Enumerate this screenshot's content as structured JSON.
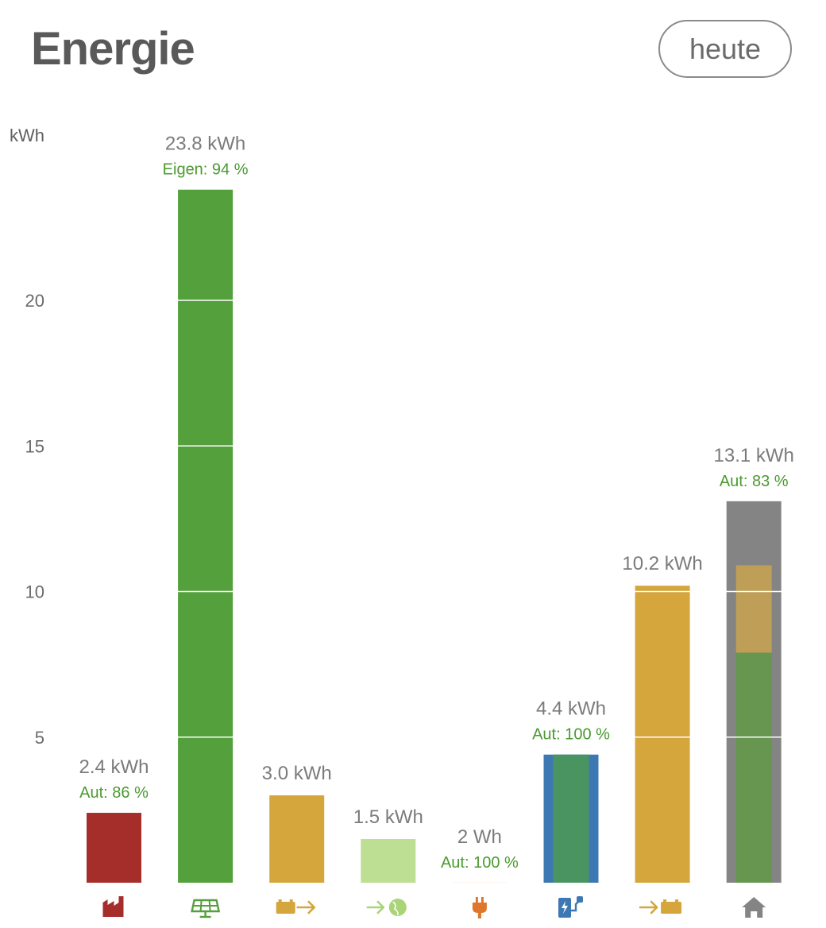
{
  "header": {
    "title": "Energie",
    "period_button": "heute"
  },
  "colors": {
    "grid_import": "#a52d2a",
    "pv": "#54a03c",
    "battery": "#d4a63c",
    "grid_export": "#bddf93",
    "plug": "#e0762b",
    "wallbox": "#3e78b3",
    "wallbox_inner": "#4a9462",
    "house": "#848484",
    "house_pv": "#66964f",
    "house_battery": "#bf9f57"
  },
  "chart_data": {
    "type": "bar",
    "ylabel": "kWh",
    "yticks": [
      5,
      10,
      15,
      20
    ],
    "ylim": [
      0,
      24.5
    ],
    "grid": true,
    "bars": [
      {
        "icon": "factory-icon",
        "value": 2.4,
        "label": "2.4 kWh",
        "sub": "Aut: 86 %",
        "color_key": "grid_import"
      },
      {
        "icon": "solar-panel-icon",
        "value": 23.8,
        "label": "23.8 kWh",
        "sub": "Eigen: 94 %",
        "color_key": "pv"
      },
      {
        "icon": "battery-discharge-icon",
        "value": 3.0,
        "label": "3.0 kWh",
        "sub": "",
        "color_key": "battery"
      },
      {
        "icon": "grid-export-icon",
        "value": 1.5,
        "label": "1.5 kWh",
        "sub": "",
        "color_key": "grid_export"
      },
      {
        "icon": "plug-icon",
        "value": 0.002,
        "label": "2 Wh",
        "sub": "Aut: 100 %",
        "color_key": "plug"
      },
      {
        "icon": "ev-charger-icon",
        "value": 4.4,
        "label": "4.4 kWh",
        "sub": "Aut: 100 %",
        "color_key": "wallbox"
      },
      {
        "icon": "battery-charge-icon",
        "value": 10.2,
        "label": "10.2 kWh",
        "sub": "",
        "color_key": "battery"
      },
      {
        "icon": "house-icon",
        "value": 13.1,
        "label": "13.1 kWh",
        "sub": "Aut: 83 %",
        "color_key": "house",
        "segments": [
          {
            "source": "pv",
            "value": 7.9
          },
          {
            "source": "battery",
            "value": 3.0
          }
        ]
      }
    ]
  }
}
